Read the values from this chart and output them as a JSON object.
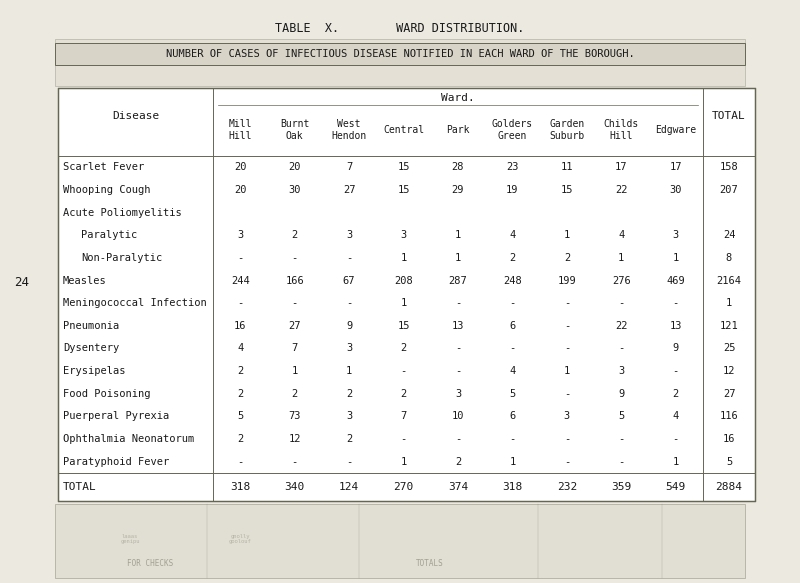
{
  "title1": "TABLE  X.        WARD DISTRIBUTION.",
  "title2": "NUMBER OF CASES OF INFECTIOUS DISEASE NOTIFIED IN EACH WARD OF THE BOROUGH.",
  "ward_header": "Ward.",
  "col_headers": [
    "Mill\nHill",
    "Burnt\nOak",
    "West\nHendon",
    "Central",
    "Park",
    "Golders\nGreen",
    "Garden\nSuburb",
    "Childs\nHill",
    "Edgware"
  ],
  "total_header": "TOTAL",
  "disease_header": "Disease",
  "rows": [
    {
      "disease": "Scarlet Fever",
      "indent": 0,
      "values": [
        "20",
        "20",
        "7",
        "15",
        "28",
        "23",
        "11",
        "17",
        "17"
      ],
      "total": "158"
    },
    {
      "disease": "Whooping Cough",
      "indent": 0,
      "values": [
        "20",
        "30",
        "27",
        "15",
        "29",
        "19",
        "15",
        "22",
        "30"
      ],
      "total": "207"
    },
    {
      "disease": "Acute Poliomyelitis",
      "indent": 0,
      "values": [
        null,
        null,
        null,
        null,
        null,
        null,
        null,
        null,
        null
      ],
      "total": null
    },
    {
      "disease": "Paralytic",
      "indent": 1,
      "values": [
        "3",
        "2",
        "3",
        "3",
        "1",
        "4",
        "1",
        "4",
        "3"
      ],
      "total": "24"
    },
    {
      "disease": "Non-Paralytic",
      "indent": 1,
      "values": [
        "-",
        "-",
        "-",
        "1",
        "1",
        "2",
        "2",
        "1",
        "1"
      ],
      "total": "8"
    },
    {
      "disease": "Measles",
      "indent": 0,
      "values": [
        "244",
        "166",
        "67",
        "208",
        "287",
        "248",
        "199",
        "276",
        "469"
      ],
      "total": "2164"
    },
    {
      "disease": "Meningococcal Infection",
      "indent": 0,
      "values": [
        "-",
        "-",
        "-",
        "1",
        "-",
        "-",
        "-",
        "-",
        "-"
      ],
      "total": "1"
    },
    {
      "disease": "Pneumonia",
      "indent": 0,
      "values": [
        "16",
        "27",
        "9",
        "15",
        "13",
        "6",
        "-",
        "22",
        "13"
      ],
      "total": "121"
    },
    {
      "disease": "Dysentery",
      "indent": 0,
      "values": [
        "4",
        "7",
        "3",
        "2",
        "-",
        "-",
        "-",
        "-",
        "9"
      ],
      "total": "25"
    },
    {
      "disease": "Erysipelas",
      "indent": 0,
      "values": [
        "2",
        "1",
        "1",
        "-",
        "-",
        "4",
        "1",
        "3",
        "-"
      ],
      "total": "12"
    },
    {
      "disease": "Food Poisoning",
      "indent": 0,
      "values": [
        "2",
        "2",
        "2",
        "2",
        "3",
        "5",
        "-",
        "9",
        "2"
      ],
      "total": "27"
    },
    {
      "disease": "Puerperal Pyrexia",
      "indent": 0,
      "values": [
        "5",
        "73",
        "3",
        "7",
        "10",
        "6",
        "3",
        "5",
        "4"
      ],
      "total": "116"
    },
    {
      "disease": "Ophthalmia Neonatorum",
      "indent": 0,
      "values": [
        "2",
        "12",
        "2",
        "-",
        "-",
        "-",
        "-",
        "-",
        "-"
      ],
      "total": "16"
    },
    {
      "disease": "Paratyphoid Fever",
      "indent": 0,
      "values": [
        "-",
        "-",
        "-",
        "1",
        "2",
        "1",
        "-",
        "-",
        "1"
      ],
      "total": "5"
    }
  ],
  "total_row": {
    "disease": "TOTAL",
    "values": [
      "318",
      "340",
      "124",
      "270",
      "374",
      "318",
      "232",
      "359",
      "549"
    ],
    "total": "2884"
  },
  "bg_color": "#ece9e0",
  "text_color": "#1a1a1a",
  "border_color": "#666655",
  "faded_color": "#d8d4c8",
  "page_number": "24"
}
